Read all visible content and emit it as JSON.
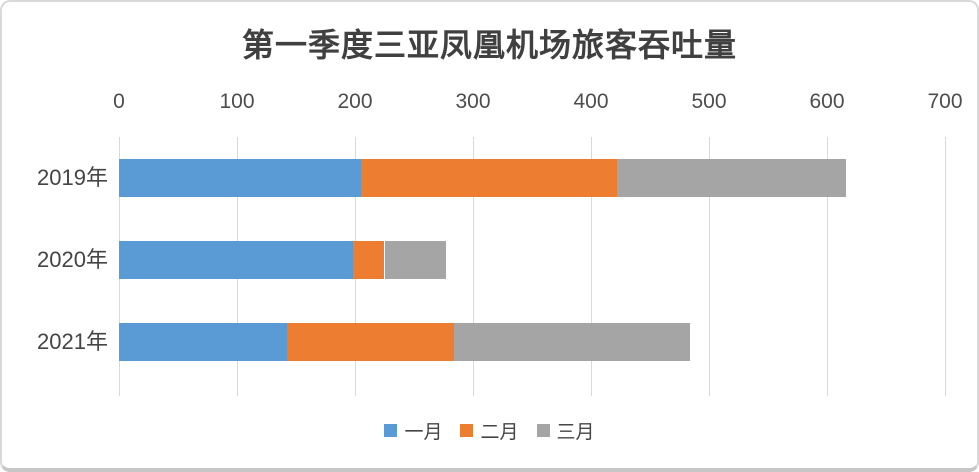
{
  "chart": {
    "title": "第一季度三亚凤凰机场旅客吞吐量"
  },
  "chart_data": {
    "type": "bar",
    "orientation": "horizontal",
    "stacked": true,
    "title": "第一季度三亚凤凰机场旅客吞吐量",
    "categories": [
      "2019年",
      "2020年",
      "2021年"
    ],
    "series": [
      {
        "name": "一月",
        "color": "#5B9BD5",
        "values": [
          205,
          198,
          142
        ]
      },
      {
        "name": "二月",
        "color": "#ED7D31",
        "values": [
          217,
          27,
          142
        ]
      },
      {
        "name": "三月",
        "color": "#A5A5A5",
        "values": [
          194,
          52,
          200
        ]
      }
    ],
    "x_axis": {
      "min": 0,
      "max": 700,
      "step": 100,
      "position": "top",
      "tick_labels": [
        "0",
        "100",
        "200",
        "300",
        "400",
        "500",
        "600",
        "700"
      ]
    },
    "legend": {
      "position": "bottom",
      "entries": [
        "一月",
        "二月",
        "三月"
      ]
    },
    "grid": true,
    "colors": {
      "gridline": "#D9D9D9",
      "title_text": "#404040",
      "axis_text": "#4D4D4D"
    }
  }
}
